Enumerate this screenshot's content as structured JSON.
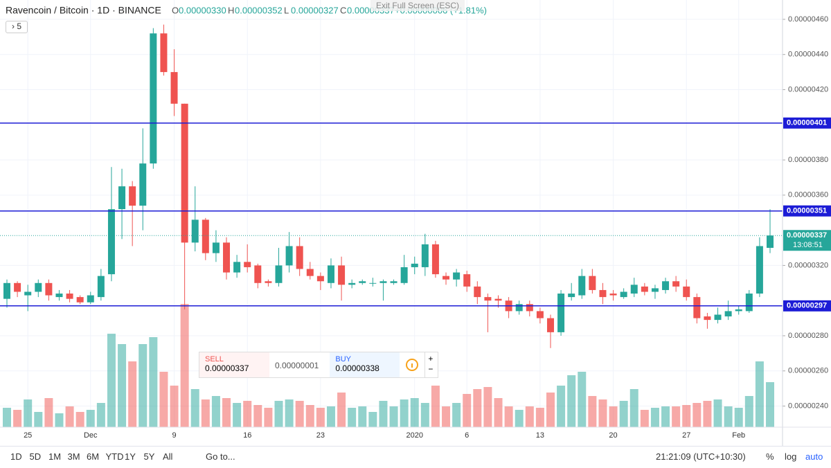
{
  "chart_data": {
    "type": "candlestick",
    "title": "Ravencoin / Bitcoin · 1D · BINANCE",
    "ohlc_header": [
      {
        "key": "O",
        "text": "0.00000330"
      },
      {
        "key": "H",
        "text": "0.00000352"
      },
      {
        "key": "L",
        "text": "0.00000327"
      },
      {
        "key": "C",
        "text": "0.00000337"
      }
    ],
    "change": "+0.00000006 (+1.81%)",
    "categories": [
      null,
      null,
      "25",
      null,
      null,
      null,
      null,
      null,
      "Dec",
      null,
      null,
      null,
      null,
      null,
      null,
      null,
      "9",
      null,
      null,
      null,
      null,
      null,
      null,
      "16",
      null,
      null,
      null,
      null,
      null,
      null,
      "23",
      null,
      null,
      null,
      null,
      null,
      null,
      null,
      null,
      "2020",
      null,
      null,
      null,
      null,
      "6",
      null,
      null,
      null,
      null,
      null,
      null,
      "13",
      null,
      null,
      null,
      null,
      null,
      null,
      "20",
      null,
      null,
      null,
      null,
      null,
      null,
      "27",
      null,
      null,
      null,
      null,
      "Feb",
      null,
      null,
      null
    ],
    "open": [
      3.01e-06,
      3.1e-06,
      3.03e-06,
      3.05e-06,
      3.1e-06,
      3.02e-06,
      3.04e-06,
      3.02e-06,
      2.99e-06,
      3.02e-06,
      3.15e-06,
      3.52e-06,
      3.65e-06,
      3.54e-06,
      3.78e-06,
      4.52e-06,
      4.3e-06,
      4.12e-06,
      3.33e-06,
      3.46e-06,
      3.27e-06,
      3.33e-06,
      3.16e-06,
      3.22e-06,
      3.2e-06,
      3.11e-06,
      3.1e-06,
      3.2e-06,
      3.31e-06,
      3.18e-06,
      3.14e-06,
      3.1e-06,
      3.2e-06,
      3.09e-06,
      3.1e-06,
      3.1e-06,
      3.1e-06,
      3.1e-06,
      3.1e-06,
      3.19e-06,
      3.19e-06,
      3.32e-06,
      3.14e-06,
      3.12e-06,
      3.15e-06,
      3.08e-06,
      3.02e-06,
      3.01e-06,
      3e-06,
      2.94e-06,
      2.98e-06,
      2.94e-06,
      2.9e-06,
      2.82e-06,
      3.02e-06,
      3.03e-06,
      3.14e-06,
      3.06e-06,
      3.04e-06,
      3.02e-06,
      3.04e-06,
      3.08e-06,
      3.05e-06,
      3.06e-06,
      3.11e-06,
      3.08e-06,
      3.02e-06,
      2.91e-06,
      2.89e-06,
      2.91e-06,
      2.94e-06,
      2.94e-06,
      3.04e-06,
      3.3e-06
    ],
    "high": [
      3.12e-06,
      3.11e-06,
      3.09e-06,
      3.12e-06,
      3.12e-06,
      3.06e-06,
      3.06e-06,
      3.03e-06,
      3.05e-06,
      3.18e-06,
      3.76e-06,
      3.75e-06,
      3.68e-06,
      3.98e-06,
      4.55e-06,
      4.57e-06,
      4.43e-06,
      4.12e-06,
      3.65e-06,
      3.47e-06,
      3.4e-06,
      3.36e-06,
      3.26e-06,
      3.32e-06,
      3.21e-06,
      3.12e-06,
      3.3e-06,
      3.39e-06,
      3.36e-06,
      3.22e-06,
      3.16e-06,
      3.24e-06,
      3.25e-06,
      3.12e-06,
      3.12e-06,
      3.13e-06,
      3.12e-06,
      3.12e-06,
      3.26e-06,
      3.25e-06,
      3.38e-06,
      3.34e-06,
      3.16e-06,
      3.18e-06,
      3.17e-06,
      3.11e-06,
      3.04e-06,
      3.03e-06,
      3.02e-06,
      3e-06,
      3e-06,
      2.96e-06,
      2.92e-06,
      3.06e-06,
      3.1e-06,
      3.18e-06,
      3.18e-06,
      3.1e-06,
      3.06e-06,
      3.07e-06,
      3.13e-06,
      3.1e-06,
      3.09e-06,
      3.13e-06,
      3.14e-06,
      3.12e-06,
      3.04e-06,
      2.93e-06,
      2.96e-06,
      3e-06,
      2.97e-06,
      3.06e-06,
      3.36e-06,
      3.52e-06
    ],
    "low": [
      2.96e-06,
      3.02e-06,
      2.94e-06,
      3.02e-06,
      3e-06,
      3e-06,
      2.99e-06,
      2.98e-06,
      2.98e-06,
      3e-06,
      3.11e-06,
      3.35e-06,
      3.31e-06,
      3.4e-06,
      3.75e-06,
      4.28e-06,
      4.05e-06,
      2.95e-06,
      3.28e-06,
      3.23e-06,
      3.22e-06,
      3.12e-06,
      3.13e-06,
      3.16e-06,
      3.07e-06,
      3.08e-06,
      3.08e-06,
      3.16e-06,
      3.14e-06,
      3.12e-06,
      3.06e-06,
      3.07e-06,
      3e-06,
      3.07e-06,
      3.09e-06,
      3.08e-06,
      3e-06,
      3.09e-06,
      3.09e-06,
      3.15e-06,
      3.14e-06,
      3.13e-06,
      3.09e-06,
      3.08e-06,
      3.05e-06,
      2.98e-06,
      2.82e-06,
      2.96e-06,
      2.9e-06,
      2.92e-06,
      2.91e-06,
      2.87e-06,
      2.73e-06,
      2.8e-06,
      3e-06,
      3.01e-06,
      3.04e-06,
      2.98e-06,
      3e-06,
      3.01e-06,
      3.02e-06,
      3.03e-06,
      3.01e-06,
      3.04e-06,
      3.05e-06,
      3e-06,
      2.87e-06,
      2.84e-06,
      2.87e-06,
      2.89e-06,
      2.92e-06,
      2.93e-06,
      3.02e-06,
      3.27e-06
    ],
    "close": [
      3.1e-06,
      3.05e-06,
      3.05e-06,
      3.1e-06,
      3.03e-06,
      3.04e-06,
      3.01e-06,
      2.99e-06,
      3.03e-06,
      3.14e-06,
      3.52e-06,
      3.65e-06,
      3.54e-06,
      3.78e-06,
      4.52e-06,
      4.3e-06,
      4.12e-06,
      3.33e-06,
      3.46e-06,
      3.27e-06,
      3.33e-06,
      3.16e-06,
      3.22e-06,
      3.19e-06,
      3.1e-06,
      3.1e-06,
      3.2e-06,
      3.31e-06,
      3.18e-06,
      3.14e-06,
      3.11e-06,
      3.2e-06,
      3.09e-06,
      3.1e-06,
      3.11e-06,
      3.1e-06,
      3.11e-06,
      3.11e-06,
      3.19e-06,
      3.21e-06,
      3.32e-06,
      3.15e-06,
      3.12e-06,
      3.16e-06,
      3.08e-06,
      3.02e-06,
      3e-06,
      3e-06,
      2.94e-06,
      2.98e-06,
      2.94e-06,
      2.9e-06,
      2.82e-06,
      3.04e-06,
      3.04e-06,
      3.14e-06,
      3.06e-06,
      3.02e-06,
      3.03e-06,
      3.05e-06,
      3.09e-06,
      3.05e-06,
      3.07e-06,
      3.11e-06,
      3.08e-06,
      3.02e-06,
      2.9e-06,
      2.89e-06,
      2.92e-06,
      2.94e-06,
      2.95e-06,
      3.04e-06,
      3.31e-06,
      3.37e-06
    ],
    "volume": [
      28,
      25,
      40,
      22,
      42,
      20,
      30,
      22,
      25,
      35,
      135,
      120,
      95,
      120,
      130,
      80,
      60,
      178,
      55,
      40,
      45,
      42,
      35,
      38,
      32,
      28,
      38,
      40,
      38,
      32,
      28,
      30,
      50,
      28,
      30,
      22,
      38,
      30,
      40,
      42,
      35,
      60,
      30,
      35,
      48,
      55,
      58,
      42,
      30,
      25,
      30,
      28,
      50,
      60,
      75,
      80,
      45,
      40,
      30,
      38,
      55,
      25,
      28,
      30,
      30,
      32,
      35,
      38,
      40,
      30,
      28,
      45,
      95,
      65
    ],
    "up_color": "#26a69a",
    "down_color": "#ef5350",
    "grid": true,
    "ylim": [
      2.28e-06,
      4.71e-06
    ],
    "yticks": [
      {
        "value": 4.6e-06,
        "label": "0.00000460"
      },
      {
        "value": 4.4e-06,
        "label": "0.00000440"
      },
      {
        "value": 4.2e-06,
        "label": "0.00000420"
      },
      {
        "value": 3.8e-06,
        "label": "0.00000380"
      },
      {
        "value": 3.6e-06,
        "label": "0.00000360"
      },
      {
        "value": 3.2e-06,
        "label": "0.00000320"
      },
      {
        "value": 2.8e-06,
        "label": "0.00000280"
      },
      {
        "value": 2.6e-06,
        "label": "0.00000260"
      },
      {
        "value": 2.4e-06,
        "label": "0.00000240"
      }
    ],
    "price_lines": [
      {
        "value": 4.01e-06,
        "label": "0.00000401"
      },
      {
        "value": 3.51e-06,
        "label": "0.00000351"
      },
      {
        "value": 2.97e-06,
        "label": "0.00000297"
      }
    ],
    "price_line_color": "#1c1cd6",
    "last_price": {
      "value": 3.37e-06,
      "label": "0.00000337"
    },
    "countdown": "13:08:51"
  },
  "fullscreen_hint": "Exit Full Screen (ESC)",
  "interval_button": "5",
  "trade": {
    "sell_label": "SELL",
    "sell_price": "0.00000337",
    "spread": "0.00000001",
    "buy_label": "BUY",
    "buy_price": "0.00000338"
  },
  "toolbar": {
    "ranges": [
      "1D",
      "5D",
      "1M",
      "3M",
      "6M",
      "YTD",
      "1Y",
      "5Y",
      "All"
    ],
    "goto": "Go to...",
    "clock": "21:21:09 (UTC+10:30)",
    "options": [
      "%",
      "log",
      "auto"
    ]
  }
}
